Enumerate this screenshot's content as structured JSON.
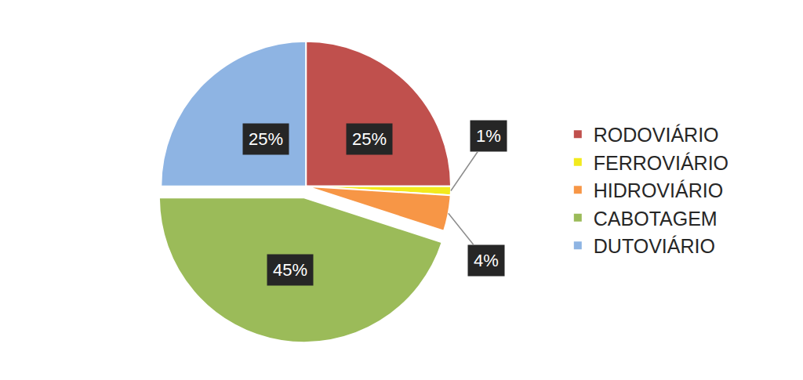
{
  "chart_data": {
    "type": "pie",
    "categories": [
      "RODOVIÁRIO",
      "FERROVIÁRIO",
      "HIDROVIÁRIO",
      "CABOTAGEM",
      "DUTOVIÁRIO"
    ],
    "values": [
      25,
      1,
      4,
      45,
      25
    ],
    "value_labels": [
      "25%",
      "1%",
      "4%",
      "45%",
      "25%"
    ],
    "colors": [
      "#c0504d",
      "#f2ea1d",
      "#f79646",
      "#9bbb59",
      "#8eb4e3"
    ],
    "data_labels": true,
    "legend": "right"
  }
}
